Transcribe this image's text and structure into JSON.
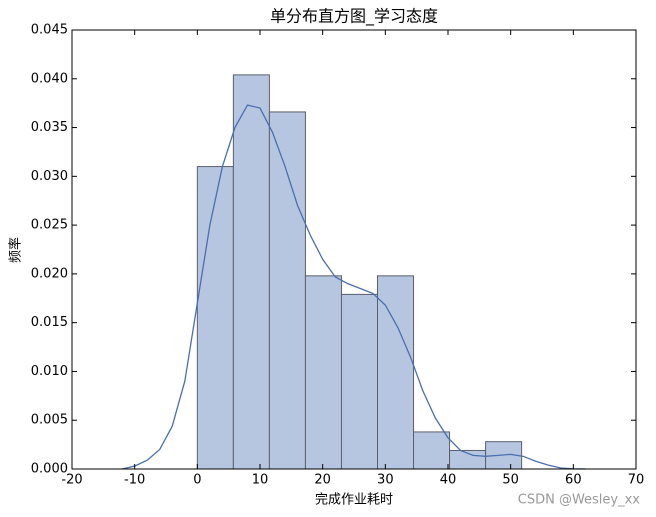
{
  "chart_data": {
    "type": "histogram",
    "title": "单分布直方图_学习态度",
    "xlabel": "完成作业耗时",
    "ylabel": "频率",
    "bins": [
      0,
      5.75,
      11.5,
      17.25,
      23,
      28.75,
      34.5,
      40.25,
      46,
      51.75
    ],
    "values": [
      0.031,
      0.0404,
      0.0366,
      0.0198,
      0.0179,
      0.0198,
      0.0038,
      0.0019,
      0.0028
    ],
    "color": "#b7c6e0",
    "edgecolor": "#5a5f6a",
    "kde": {
      "color": "#4a6fae",
      "x": [
        -12,
        -10,
        -8,
        -6,
        -4,
        -2,
        0,
        2,
        4,
        6,
        8,
        10,
        12,
        14,
        16,
        18,
        20,
        22,
        24,
        26,
        28,
        30,
        32,
        34,
        36,
        38,
        40,
        42,
        44,
        46,
        48,
        50,
        52,
        54,
        56,
        58,
        60,
        62
      ],
      "values": [
        0.0,
        0.0003,
        0.0009,
        0.002,
        0.0044,
        0.009,
        0.017,
        0.025,
        0.031,
        0.035,
        0.0373,
        0.037,
        0.0345,
        0.031,
        0.027,
        0.024,
        0.0215,
        0.0197,
        0.019,
        0.0185,
        0.018,
        0.0168,
        0.0145,
        0.0115,
        0.008,
        0.0052,
        0.0032,
        0.0019,
        0.0014,
        0.0013,
        0.0014,
        0.0015,
        0.0013,
        0.0008,
        0.0004,
        0.0001,
        2e-05,
        0.0
      ]
    },
    "xlim": [
      -20,
      70
    ],
    "xticks": [
      -20,
      -10,
      0,
      10,
      20,
      30,
      40,
      50,
      60,
      70
    ],
    "ylim": [
      0,
      0.045
    ],
    "yticks": [
      {
        "value": 0,
        "label": "0.000"
      },
      {
        "value": 0.005,
        "label": "0.005"
      },
      {
        "value": 0.01,
        "label": "0.010"
      },
      {
        "value": 0.015,
        "label": "0.015"
      },
      {
        "value": 0.02,
        "label": "0.020"
      },
      {
        "value": 0.025,
        "label": "0.025"
      },
      {
        "value": 0.03,
        "label": "0.030"
      },
      {
        "value": 0.035,
        "label": "0.035"
      },
      {
        "value": 0.04,
        "label": "0.040"
      },
      {
        "value": 0.045,
        "label": "0.045"
      }
    ],
    "grid": false
  },
  "watermark": "CSDN @Wesley_xx"
}
